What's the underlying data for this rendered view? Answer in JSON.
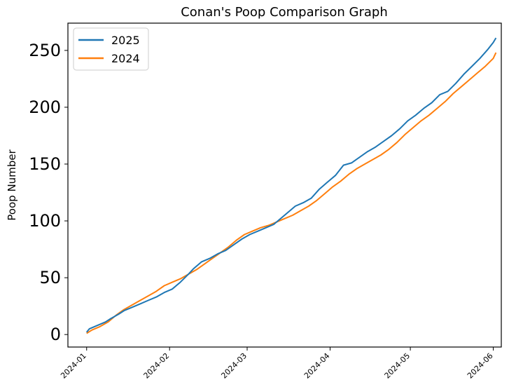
{
  "chart_data": {
    "type": "line",
    "title": "Conan's Poop Comparison Graph",
    "xlabel": "",
    "ylabel": "Poop Number",
    "xlim": [
      "2023-12-25",
      "2024-06-04"
    ],
    "ylim": [
      -11,
      274
    ],
    "x_ticks": [
      "2024-01",
      "2024-02",
      "2024-03",
      "2024-04",
      "2024-05",
      "2024-06"
    ],
    "y_ticks": [
      0,
      50,
      100,
      150,
      200,
      250
    ],
    "legend_position": "top-left",
    "grid": false,
    "series": [
      {
        "name": "2025",
        "color": "#1f77b4",
        "points": [
          [
            "2024-01-01",
            2
          ],
          [
            "2024-01-02",
            5
          ],
          [
            "2024-01-04",
            7
          ],
          [
            "2024-01-06",
            9
          ],
          [
            "2024-01-08",
            11
          ],
          [
            "2024-01-10",
            14
          ],
          [
            "2024-01-13",
            18
          ],
          [
            "2024-01-15",
            21
          ],
          [
            "2024-01-18",
            24
          ],
          [
            "2024-01-21",
            27
          ],
          [
            "2024-01-24",
            30
          ],
          [
            "2024-01-27",
            33
          ],
          [
            "2024-01-30",
            37
          ],
          [
            "2024-02-02",
            40
          ],
          [
            "2024-02-05",
            46
          ],
          [
            "2024-02-08",
            53
          ],
          [
            "2024-02-10",
            58
          ],
          [
            "2024-02-13",
            64
          ],
          [
            "2024-02-16",
            67
          ],
          [
            "2024-02-19",
            71
          ],
          [
            "2024-02-22",
            74
          ],
          [
            "2024-02-25",
            79
          ],
          [
            "2024-02-28",
            84
          ],
          [
            "2024-03-02",
            88
          ],
          [
            "2024-03-05",
            91
          ],
          [
            "2024-03-08",
            94
          ],
          [
            "2024-03-11",
            97
          ],
          [
            "2024-03-13",
            101
          ],
          [
            "2024-03-16",
            107
          ],
          [
            "2024-03-19",
            113
          ],
          [
            "2024-03-22",
            116
          ],
          [
            "2024-03-25",
            120
          ],
          [
            "2024-03-28",
            128
          ],
          [
            "2024-03-31",
            134
          ],
          [
            "2024-04-03",
            140
          ],
          [
            "2024-04-06",
            149
          ],
          [
            "2024-04-09",
            151
          ],
          [
            "2024-04-12",
            156
          ],
          [
            "2024-04-15",
            161
          ],
          [
            "2024-04-18",
            165
          ],
          [
            "2024-04-21",
            170
          ],
          [
            "2024-04-24",
            175
          ],
          [
            "2024-04-27",
            181
          ],
          [
            "2024-04-30",
            188
          ],
          [
            "2024-05-03",
            193
          ],
          [
            "2024-05-06",
            199
          ],
          [
            "2024-05-09",
            204
          ],
          [
            "2024-05-12",
            211
          ],
          [
            "2024-05-15",
            214
          ],
          [
            "2024-05-18",
            221
          ],
          [
            "2024-05-21",
            229
          ],
          [
            "2024-05-24",
            236
          ],
          [
            "2024-05-27",
            243
          ],
          [
            "2024-05-30",
            251
          ],
          [
            "2024-06-01",
            257
          ],
          [
            "2024-06-02",
            261
          ]
        ]
      },
      {
        "name": "2024",
        "color": "#ff7f0e",
        "points": [
          [
            "2024-01-01",
            1
          ],
          [
            "2024-01-03",
            4
          ],
          [
            "2024-01-06",
            7
          ],
          [
            "2024-01-09",
            11
          ],
          [
            "2024-01-12",
            17
          ],
          [
            "2024-01-15",
            22
          ],
          [
            "2024-01-18",
            26
          ],
          [
            "2024-01-21",
            30
          ],
          [
            "2024-01-24",
            34
          ],
          [
            "2024-01-27",
            38
          ],
          [
            "2024-01-30",
            43
          ],
          [
            "2024-02-02",
            46
          ],
          [
            "2024-02-05",
            49
          ],
          [
            "2024-02-08",
            53
          ],
          [
            "2024-02-11",
            57
          ],
          [
            "2024-02-14",
            62
          ],
          [
            "2024-02-17",
            67
          ],
          [
            "2024-02-20",
            72
          ],
          [
            "2024-02-23",
            77
          ],
          [
            "2024-02-26",
            83
          ],
          [
            "2024-02-29",
            88
          ],
          [
            "2024-03-03",
            91
          ],
          [
            "2024-03-06",
            94
          ],
          [
            "2024-03-09",
            96
          ],
          [
            "2024-03-12",
            99
          ],
          [
            "2024-03-15",
            102
          ],
          [
            "2024-03-18",
            105
          ],
          [
            "2024-03-21",
            109
          ],
          [
            "2024-03-24",
            113
          ],
          [
            "2024-03-27",
            118
          ],
          [
            "2024-03-30",
            124
          ],
          [
            "2024-04-02",
            130
          ],
          [
            "2024-04-05",
            135
          ],
          [
            "2024-04-08",
            141
          ],
          [
            "2024-04-11",
            146
          ],
          [
            "2024-04-14",
            150
          ],
          [
            "2024-04-17",
            154
          ],
          [
            "2024-04-20",
            158
          ],
          [
            "2024-04-23",
            163
          ],
          [
            "2024-04-26",
            169
          ],
          [
            "2024-04-29",
            176
          ],
          [
            "2024-05-02",
            182
          ],
          [
            "2024-05-05",
            188
          ],
          [
            "2024-05-08",
            193
          ],
          [
            "2024-05-11",
            199
          ],
          [
            "2024-05-14",
            205
          ],
          [
            "2024-05-17",
            212
          ],
          [
            "2024-05-20",
            218
          ],
          [
            "2024-05-23",
            224
          ],
          [
            "2024-05-26",
            230
          ],
          [
            "2024-05-29",
            236
          ],
          [
            "2024-06-01",
            243
          ],
          [
            "2024-06-02",
            248
          ]
        ]
      }
    ]
  }
}
